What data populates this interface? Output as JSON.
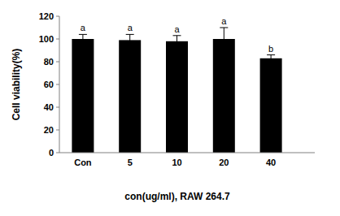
{
  "chart_data": {
    "type": "bar",
    "x_label": "con(ug/ml), RAW 264.7",
    "y_label": "Cell viability(%)",
    "categories": [
      "Con",
      "5",
      "10",
      "20",
      "40"
    ],
    "values": [
      100,
      99,
      98,
      100,
      83
    ],
    "errors": [
      4,
      5,
      5,
      10,
      3
    ],
    "annotations": [
      "a",
      "a",
      "a",
      "a",
      "b"
    ],
    "color": "#000000",
    "ylim": [
      0,
      120
    ],
    "yticks": [
      0,
      20,
      40,
      60,
      80,
      100,
      120
    ],
    "grid": false
  }
}
